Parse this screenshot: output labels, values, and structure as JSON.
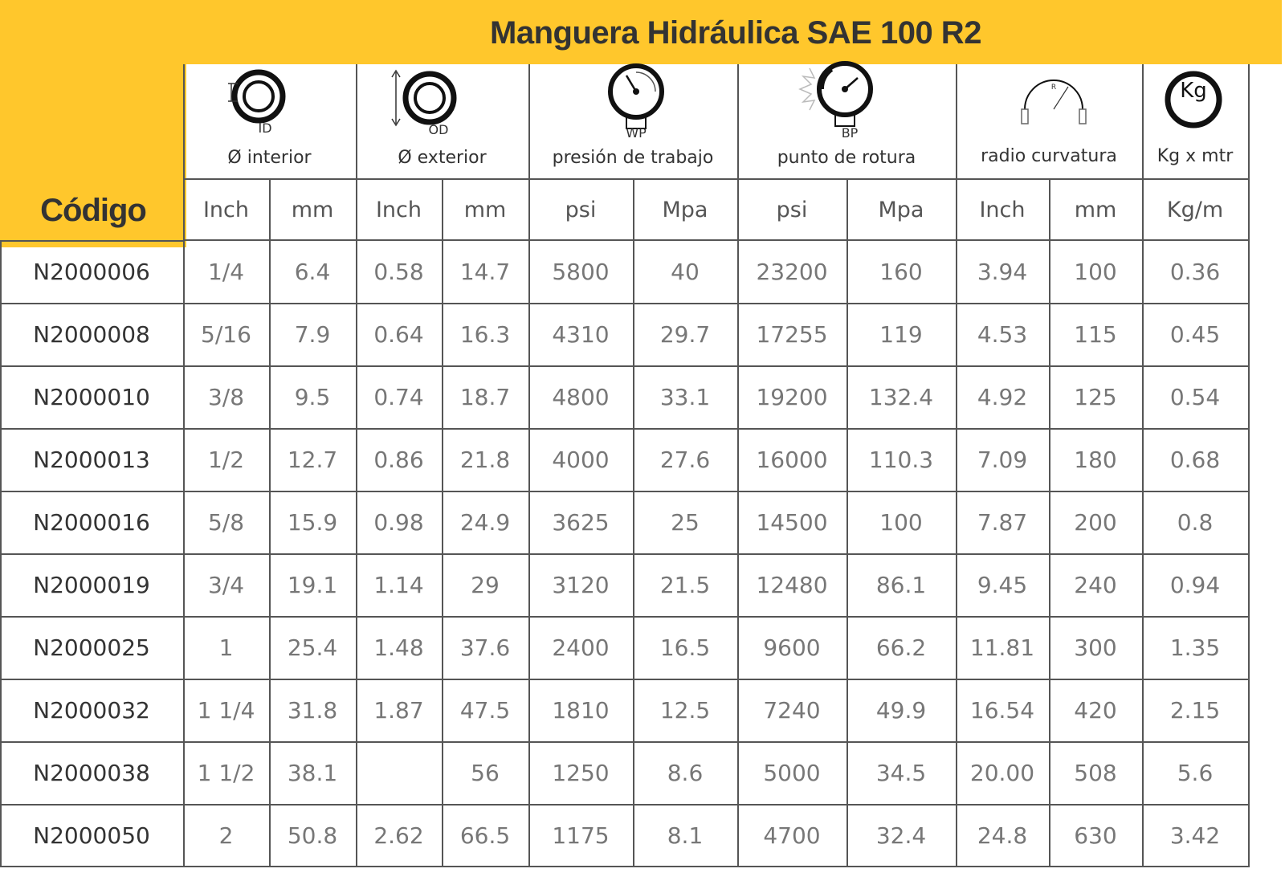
{
  "title": "Manguera Hidráulica SAE 100 R2",
  "code_header": "Código",
  "groups": [
    {
      "icon": "id-ring-icon",
      "icon_label": "ID",
      "caption": "Ø interior",
      "units": [
        "Inch",
        "mm"
      ]
    },
    {
      "icon": "od-ring-icon",
      "icon_label": "OD",
      "caption": "Ø exterior",
      "units": [
        "Inch",
        "mm"
      ]
    },
    {
      "icon": "pressure-gauge-icon",
      "icon_label": "WP",
      "caption": "presión de trabajo",
      "units": [
        "psi",
        "Mpa"
      ]
    },
    {
      "icon": "burst-gauge-icon",
      "icon_label": "BP",
      "caption": "punto de rotura",
      "units": [
        "psi",
        "Mpa"
      ]
    },
    {
      "icon": "bend-radius-icon",
      "icon_label": "R",
      "caption": "radio curvatura",
      "units": [
        "Inch",
        "mm"
      ]
    },
    {
      "icon": "weight-kg-icon",
      "icon_label": "Kg",
      "caption": "Kg x mtr",
      "units": [
        "Kg/m"
      ]
    }
  ],
  "rows": [
    {
      "code": "N2000006",
      "values": [
        "1/4",
        "6.4",
        "0.58",
        "14.7",
        "5800",
        "40",
        "23200",
        "160",
        "3.94",
        "100",
        "0.36"
      ]
    },
    {
      "code": "N2000008",
      "values": [
        "5/16",
        "7.9",
        "0.64",
        "16.3",
        "4310",
        "29.7",
        "17255",
        "119",
        "4.53",
        "115",
        "0.45"
      ]
    },
    {
      "code": "N2000010",
      "values": [
        "3/8",
        "9.5",
        "0.74",
        "18.7",
        "4800",
        "33.1",
        "19200",
        "132.4",
        "4.92",
        "125",
        "0.54"
      ]
    },
    {
      "code": "N2000013",
      "values": [
        "1/2",
        "12.7",
        "0.86",
        "21.8",
        "4000",
        "27.6",
        "16000",
        "110.3",
        "7.09",
        "180",
        "0.68"
      ]
    },
    {
      "code": "N2000016",
      "values": [
        "5/8",
        "15.9",
        "0.98",
        "24.9",
        "3625",
        "25",
        "14500",
        "100",
        "7.87",
        "200",
        "0.8"
      ]
    },
    {
      "code": "N2000019",
      "values": [
        "3/4",
        "19.1",
        "1.14",
        "29",
        "3120",
        "21.5",
        "12480",
        "86.1",
        "9.45",
        "240",
        "0.94"
      ]
    },
    {
      "code": "N2000025",
      "values": [
        "1",
        "25.4",
        "1.48",
        "37.6",
        "2400",
        "16.5",
        "9600",
        "66.2",
        "11.81",
        "300",
        "1.35"
      ]
    },
    {
      "code": "N2000032",
      "values": [
        "1 1/4",
        "31.8",
        "1.87",
        "47.5",
        "1810",
        "12.5",
        "7240",
        "49.9",
        "16.54",
        "420",
        "2.15"
      ]
    },
    {
      "code": "N2000038",
      "values": [
        "1 1/2",
        "38.1",
        "",
        "56",
        "1250",
        "8.6",
        "5000",
        "34.5",
        "20.00",
        "508",
        "5.6"
      ]
    },
    {
      "code": "N2000050",
      "values": [
        "2",
        "50.8",
        "2.62",
        "66.5",
        "1175",
        "8.1",
        "4700",
        "32.4",
        "24.8",
        "630",
        "3.42"
      ]
    }
  ]
}
